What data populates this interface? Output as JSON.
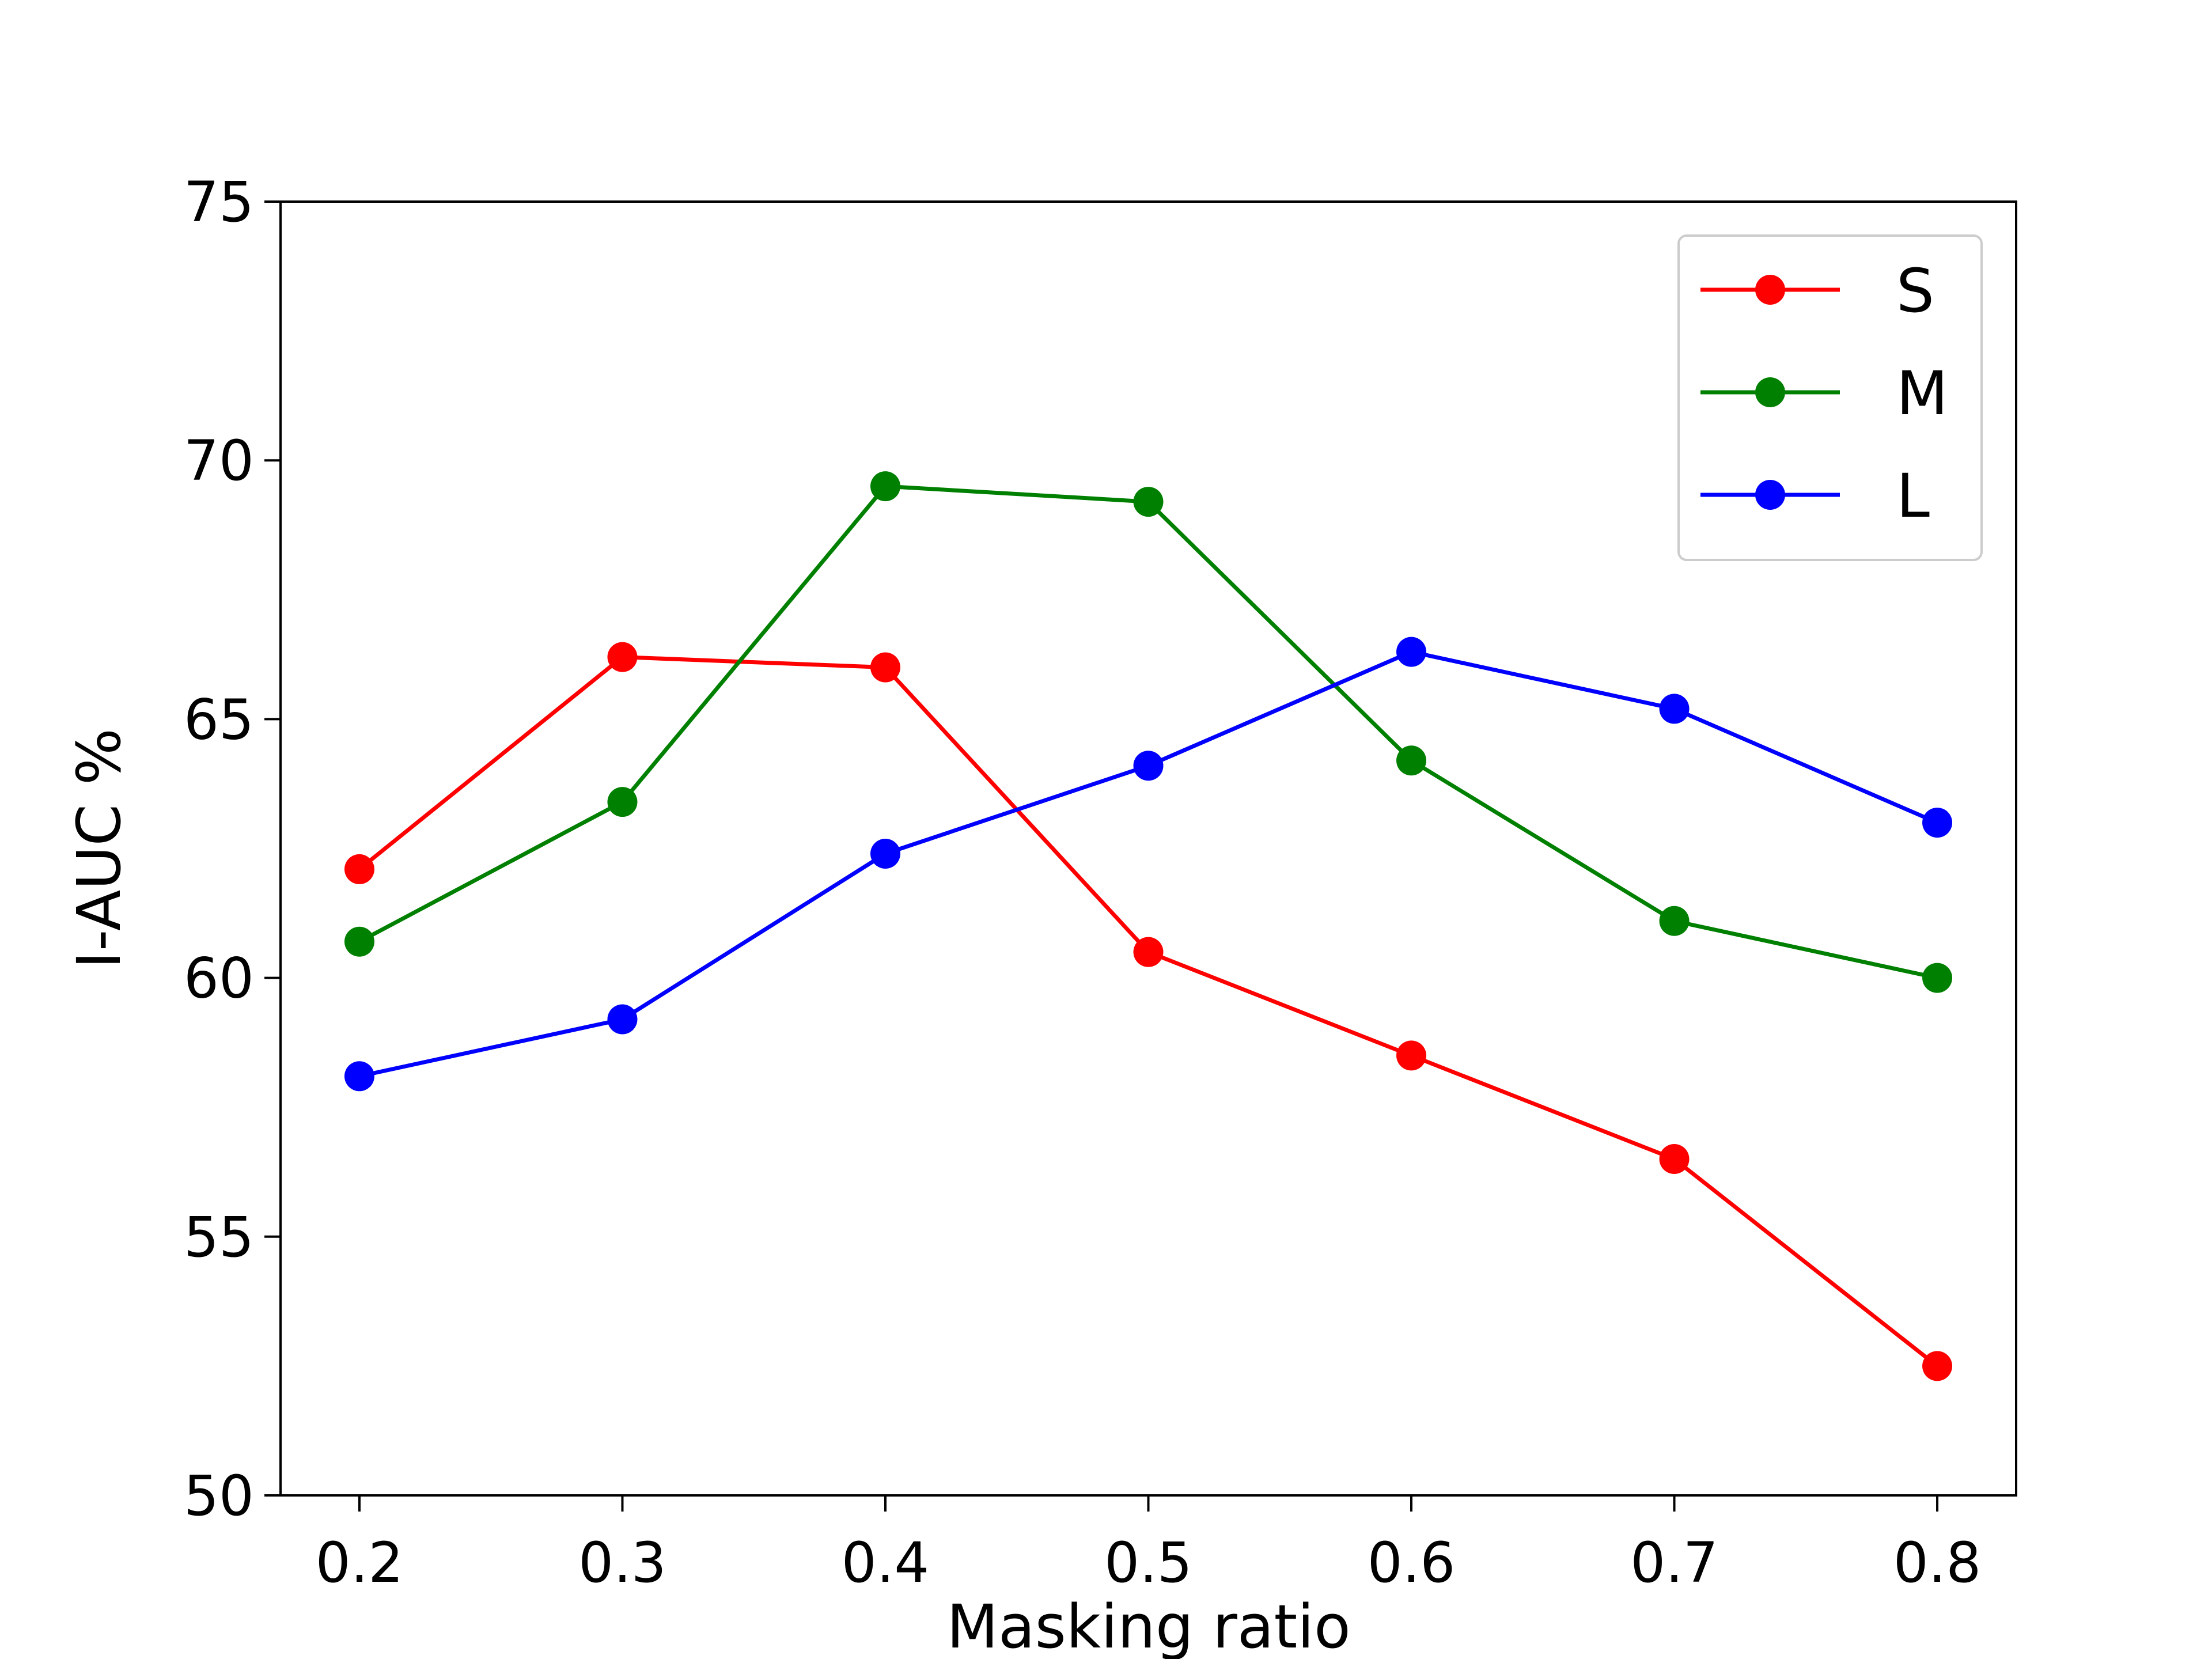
{
  "chart_data": {
    "type": "line",
    "x": [
      0.2,
      0.3,
      0.4,
      0.5,
      0.6,
      0.7,
      0.8
    ],
    "x_tick_labels": [
      "0.2",
      "0.3",
      "0.4",
      "0.5",
      "0.6",
      "0.7",
      "0.8"
    ],
    "y_ticks": [
      50,
      55,
      60,
      65,
      70,
      75
    ],
    "y_tick_labels": [
      "50",
      "55",
      "60",
      "65",
      "70",
      "75"
    ],
    "xlabel": "Masking ratio",
    "ylabel": "I-AUC %",
    "xlim": [
      0.17,
      0.83
    ],
    "ylim": [
      50,
      75
    ],
    "grid": false,
    "legend_position": "top-right",
    "series": [
      {
        "name": "S",
        "color": "#ff0000",
        "values": [
          62.1,
          66.2,
          66.0,
          60.5,
          58.5,
          56.5,
          52.5
        ]
      },
      {
        "name": "M",
        "color": "#008000",
        "values": [
          60.7,
          63.4,
          69.5,
          69.2,
          64.2,
          61.1,
          60.0
        ]
      },
      {
        "name": "L",
        "color": "#0000ff",
        "values": [
          58.1,
          59.2,
          62.4,
          64.1,
          66.3,
          65.2,
          63.0
        ]
      }
    ]
  }
}
